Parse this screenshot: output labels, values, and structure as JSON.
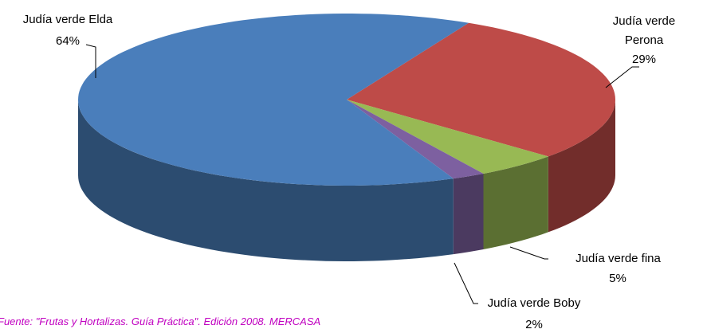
{
  "chart_data": {
    "type": "pie",
    "categories": [
      "Judía verde Elda",
      "Judía verde Perona",
      "Judía verde fina",
      "Judía verde Boby"
    ],
    "values": [
      64,
      29,
      5,
      2
    ],
    "value_labels": [
      "64%",
      "29%",
      "5%",
      "2%"
    ],
    "colors": [
      "#4a7ebb",
      "#be4b48",
      "#98b954",
      "#7d60a0"
    ],
    "source": "Fuente: \"Frutas y Hortalizas. Guía Práctica\". Edición 2008. MERCASA"
  }
}
